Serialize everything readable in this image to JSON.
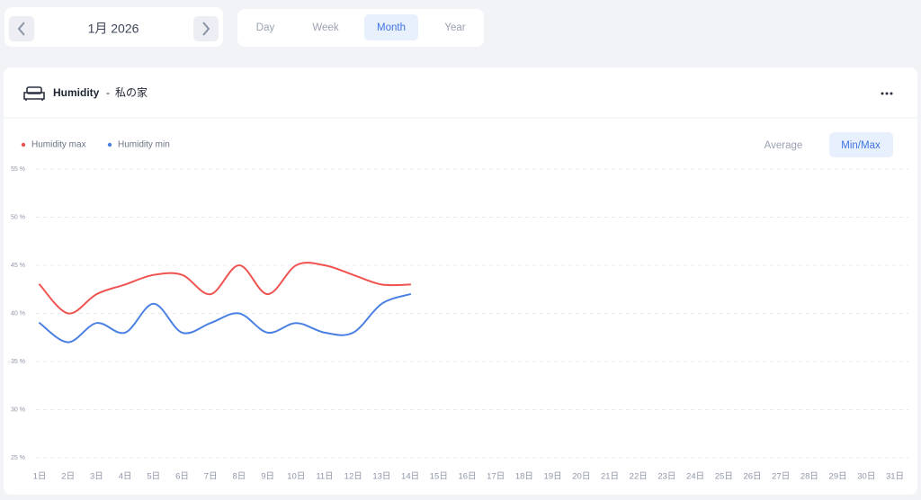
{
  "date_nav": {
    "label": "1月 2026"
  },
  "tabs": {
    "items": [
      "Day",
      "Week",
      "Month",
      "Year"
    ],
    "active": 2
  },
  "card": {
    "title": "Humidity",
    "separator": "-",
    "location": "私の家"
  },
  "modes": {
    "items": [
      "Average",
      "Min/Max"
    ],
    "active": 1
  },
  "chart_data": {
    "type": "line",
    "categories": [
      "1日",
      "2日",
      "3日",
      "4日",
      "5日",
      "6日",
      "7日",
      "8日",
      "9日",
      "10日",
      "11日",
      "12日",
      "13日",
      "14日",
      "15日",
      "16日",
      "17日",
      "18日",
      "19日",
      "20日",
      "21日",
      "22日",
      "23日",
      "24日",
      "25日",
      "26日",
      "27日",
      "28日",
      "29日",
      "30日",
      "31日"
    ],
    "series": [
      {
        "name": "Humidity max",
        "color": "#ef5350",
        "values": [
          43,
          40,
          42,
          43,
          44,
          44,
          42,
          45,
          42,
          45,
          45,
          44,
          43,
          43,
          null,
          null,
          null,
          null,
          null,
          null,
          null,
          null,
          null,
          null,
          null,
          null,
          null,
          null,
          null,
          null,
          null
        ]
      },
      {
        "name": "Humidity min",
        "color": "#4a80e3",
        "values": [
          39,
          37,
          39,
          38,
          41,
          38,
          39,
          40,
          38,
          39,
          38,
          38,
          41,
          42,
          null,
          null,
          null,
          null,
          null,
          null,
          null,
          null,
          null,
          null,
          null,
          null,
          null,
          null,
          null,
          null,
          null
        ]
      }
    ],
    "ylim": [
      25,
      55
    ],
    "yticks": [
      {
        "value": 25,
        "label": "25 %"
      },
      {
        "value": 30,
        "label": "30 %"
      },
      {
        "value": 35,
        "label": "35 %"
      },
      {
        "value": 40,
        "label": "40 %"
      },
      {
        "value": 45,
        "label": "45 %"
      },
      {
        "value": 50,
        "label": "50 %"
      },
      {
        "value": 55,
        "label": "55 %"
      }
    ],
    "grid": true,
    "legend": "top-left"
  }
}
